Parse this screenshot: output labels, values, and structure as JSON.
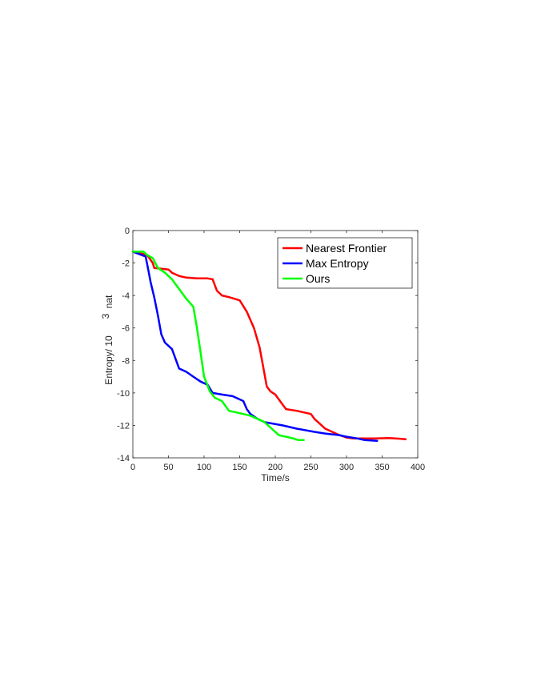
{
  "chart_data": {
    "type": "line",
    "title": "",
    "xlabel": "Time/s",
    "ylabel": "Entropy/ 10",
    "ylabel_superscript": "3",
    "ylabel_suffix": "nat",
    "xlim": [
      0,
      400
    ],
    "ylim": [
      -14,
      0
    ],
    "xticks": [
      "0",
      "50",
      "100",
      "150",
      "200",
      "250",
      "300",
      "350",
      "400"
    ],
    "yticks": [
      "0",
      "-2",
      "-4",
      "-6",
      "-8",
      "-10",
      "-12",
      "-14"
    ],
    "grid": false,
    "legend_position": "top-right",
    "series": [
      {
        "name": "Nearest Frontier",
        "color": "#ff0000",
        "x": [
          0,
          20,
          28,
          30,
          50,
          55,
          65,
          75,
          90,
          105,
          112,
          118,
          125,
          135,
          150,
          160,
          170,
          178,
          183,
          188,
          193,
          200,
          210,
          215,
          230,
          250,
          255,
          265,
          270,
          280,
          290,
          300,
          310,
          340,
          360,
          375,
          383
        ],
        "y": [
          -1.3,
          -1.5,
          -2.0,
          -2.3,
          -2.4,
          -2.6,
          -2.8,
          -2.9,
          -2.95,
          -2.95,
          -3.0,
          -3.7,
          -4.0,
          -4.1,
          -4.3,
          -5.0,
          -6.0,
          -7.2,
          -8.4,
          -9.6,
          -9.9,
          -10.1,
          -10.7,
          -11.0,
          -11.1,
          -11.3,
          -11.6,
          -12.0,
          -12.2,
          -12.4,
          -12.6,
          -12.75,
          -12.8,
          -12.8,
          -12.78,
          -12.82,
          -12.85
        ]
      },
      {
        "name": "Max Entropy",
        "color": "#0000ff",
        "x": [
          0,
          18,
          22,
          25,
          30,
          35,
          40,
          45,
          55,
          65,
          75,
          85,
          95,
          105,
          112,
          125,
          140,
          155,
          160,
          165,
          175,
          185,
          210,
          230,
          255,
          270,
          290,
          300,
          315,
          325,
          343
        ],
        "y": [
          -1.3,
          -1.6,
          -2.5,
          -3.2,
          -4.1,
          -5.2,
          -6.4,
          -6.9,
          -7.3,
          -8.5,
          -8.7,
          -9.0,
          -9.3,
          -9.5,
          -10.0,
          -10.1,
          -10.2,
          -10.5,
          -11.0,
          -11.3,
          -11.6,
          -11.8,
          -12.0,
          -12.2,
          -12.4,
          -12.5,
          -12.6,
          -12.7,
          -12.8,
          -12.9,
          -12.95
        ]
      },
      {
        "name": "Ours",
        "color": "#00ff00",
        "x": [
          0,
          15,
          20,
          28,
          35,
          45,
          55,
          65,
          75,
          85,
          90,
          95,
          100,
          108,
          115,
          125,
          135,
          145,
          155,
          165,
          175,
          185,
          195,
          205,
          215,
          225,
          232,
          240
        ],
        "y": [
          -1.3,
          -1.3,
          -1.5,
          -1.7,
          -2.3,
          -2.6,
          -3.0,
          -3.6,
          -4.2,
          -4.7,
          -6.0,
          -7.5,
          -9.0,
          -9.9,
          -10.3,
          -10.5,
          -11.1,
          -11.2,
          -11.3,
          -11.4,
          -11.6,
          -11.8,
          -12.2,
          -12.6,
          -12.7,
          -12.8,
          -12.9,
          -12.9
        ]
      }
    ]
  }
}
